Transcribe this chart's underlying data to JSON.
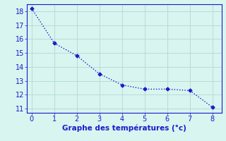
{
  "x": [
    0,
    1,
    2,
    3,
    4,
    5,
    6,
    7,
    8
  ],
  "y": [
    18.2,
    15.7,
    14.8,
    13.5,
    12.7,
    12.4,
    12.4,
    12.3,
    11.1
  ],
  "line_color": "#1a1acc",
  "marker": "D",
  "marker_size": 2.5,
  "line_width": 1.0,
  "xlabel": "Graphe des températures (°c)",
  "xlabel_color": "#1a1acc",
  "xlabel_fontsize": 7.5,
  "xlim": [
    -0.2,
    8.4
  ],
  "ylim": [
    10.7,
    18.5
  ],
  "yticks": [
    11,
    12,
    13,
    14,
    15,
    16,
    17,
    18
  ],
  "xticks": [
    0,
    1,
    2,
    3,
    4,
    5,
    6,
    7,
    8
  ],
  "background_color": "#d8f5f0",
  "grid_color": "#b8dcd8",
  "tick_color": "#1a1acc",
  "tick_fontsize": 7,
  "spine_color": "#1a1acc"
}
